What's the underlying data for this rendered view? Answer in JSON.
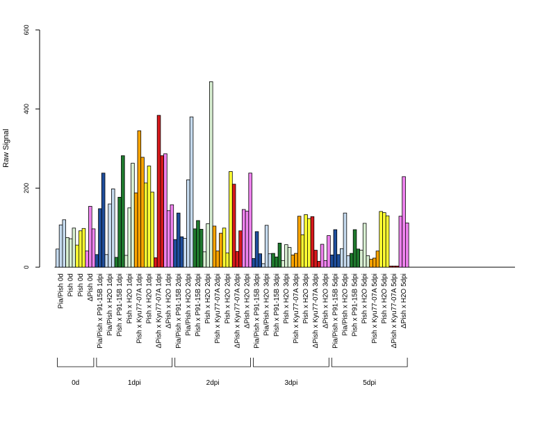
{
  "chart_data": {
    "type": "bar",
    "ylabel": "Raw Signal",
    "ylim": [
      0,
      600
    ],
    "yticks": [
      0,
      200,
      400,
      600
    ],
    "categories": [
      "Pia/Pish 0d",
      "Pish 0d",
      "Pish 0d",
      "ΔPish 0d",
      "Pia/Pish x P91-15B 1dpi",
      "Pia/Pish x H2O 1dpi",
      "Pish x P91-15B 1dpi",
      "Pish x H2O 1dpi",
      "Pish x Kyu77-07A 1dpi",
      "Pish x H2O 1dpi",
      "ΔPish x Kyu77-07A 1dpi",
      "ΔPish x H2O 1dpi",
      "Pia/Pish x P91-15B 2dpi",
      "Pia/Pish x H2O 2dpi",
      "Pish x P91-15B 2dpi",
      "Pish x H2O 2dpi",
      "Pish x Kyu77-07A 2dpi",
      "Pish x H2O 2dpi",
      "ΔPish x Kyu77-07A 2dpi",
      "ΔPish x H2O 2dpi",
      "Pia/Pish x P91-15B 3dpi",
      "Pia/Pish x H2O 3dpi",
      "Pish x P91-15B 3dpi",
      "Pish x H2O 3dpi",
      "Pish x Kyu77-07A 3dpi",
      "Pish x H2O 3dpi",
      "ΔPish x Kyu77-07A 3dpi",
      "ΔPish x H2O 3dpi",
      "Pia/Pish x P91-15B 5dpi",
      "Pia/Pish x H2O 5dpi",
      "Pish x P91-15B 5dpi",
      "Pish x H2O 5dpi",
      "Pish x Kyu77-07A 5dpi",
      "Pish x H2O 5dpi",
      "ΔPish x Kyu77-07A 5dpi",
      "ΔPish x H2O 5dpi"
    ],
    "colors": [
      "#c6dbef",
      "#d9f0d3",
      "#ffff33",
      "#ee82ee",
      "#1f4e9c",
      "#c6dbef",
      "#1f7a2e",
      "#d9f0d3",
      "#ffa500",
      "#ffff33",
      "#d7191c",
      "#ee82ee",
      "#1f4e9c",
      "#c6dbef",
      "#1f7a2e",
      "#d9f0d3",
      "#ffa500",
      "#ffff33",
      "#d7191c",
      "#ee82ee",
      "#1f4e9c",
      "#c6dbef",
      "#1f7a2e",
      "#d9f0d3",
      "#ffa500",
      "#ffff33",
      "#d7191c",
      "#ee82ee",
      "#1f4e9c",
      "#c6dbef",
      "#1f7a2e",
      "#d9f0d3",
      "#ffa500",
      "#ffff33",
      "#d7191c",
      "#ee82ee"
    ],
    "values": [
      [
        46,
        107,
        120
      ],
      [
        75,
        72,
        99
      ],
      [
        56,
        92,
        98
      ],
      [
        41,
        154,
        97
      ],
      [
        32,
        148,
        238
      ],
      [
        32,
        160,
        198
      ],
      [
        25,
        177,
        282
      ],
      [
        30,
        150,
        263
      ],
      [
        188,
        345,
        278
      ],
      [
        213,
        256,
        190
      ],
      [
        24,
        384,
        282
      ],
      [
        287,
        143,
        158
      ],
      [
        70,
        137,
        77
      ],
      [
        73,
        221,
        380
      ],
      [
        97,
        118,
        96
      ],
      [
        39,
        110,
        469
      ],
      [
        104,
        41,
        86
      ],
      [
        99,
        36,
        242
      ],
      [
        210,
        40,
        92
      ],
      [
        146,
        142,
        238
      ],
      [
        22,
        90,
        34
      ],
      [
        9,
        106,
        34
      ],
      [
        35,
        26,
        61
      ],
      [
        17,
        57,
        50
      ],
      [
        31,
        35,
        129
      ],
      [
        82,
        133,
        123
      ],
      [
        128,
        43,
        15
      ],
      [
        58,
        17,
        80
      ],
      [
        31,
        95,
        32
      ],
      [
        47,
        137,
        29
      ],
      [
        35,
        95,
        46
      ],
      [
        43,
        111,
        29
      ],
      [
        20,
        23,
        41
      ],
      [
        141,
        138,
        130
      ],
      [
        3,
        3,
        3
      ],
      [
        129,
        229,
        112
      ]
    ],
    "groups": [
      {
        "label": "0d",
        "from": 0,
        "to": 3
      },
      {
        "label": "1dpi",
        "from": 4,
        "to": 11
      },
      {
        "label": "2dpi",
        "from": 12,
        "to": 19
      },
      {
        "label": "3dpi",
        "from": 20,
        "to": 27
      },
      {
        "label": "5dpi",
        "from": 28,
        "to": 35
      }
    ],
    "grid": false,
    "legend": "none"
  }
}
